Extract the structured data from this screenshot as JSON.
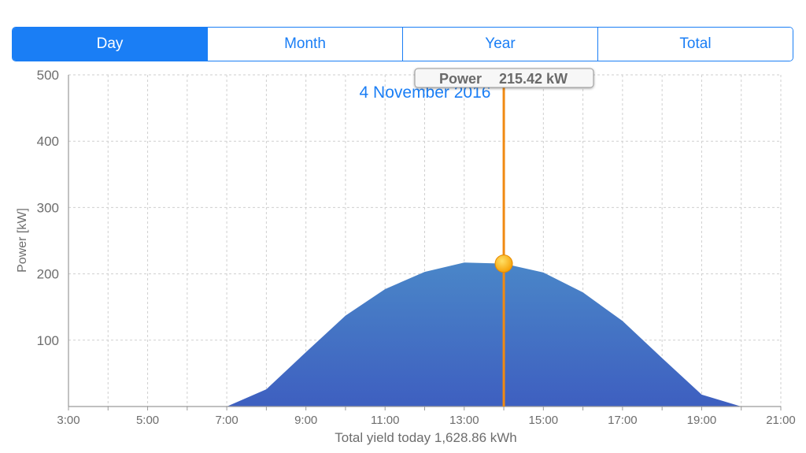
{
  "tabs": [
    {
      "label": "Day",
      "active": true
    },
    {
      "label": "Month",
      "active": false
    },
    {
      "label": "Year",
      "active": false
    },
    {
      "label": "Total",
      "active": false
    }
  ],
  "tooltip": {
    "label": "Power",
    "value": "215.42 kW"
  },
  "date_label": "4 November 2016",
  "colors": {
    "accent": "#1a7ef5",
    "area_top": "#4a86c8",
    "area_bottom": "#3e5fc0",
    "cursor": "#f08a12",
    "marker": "#ffb300"
  },
  "chart_data": {
    "type": "area",
    "title": "",
    "ylabel": "Power [kW]",
    "xlabel": "Total yield today 1,628.86 kWh",
    "ylim": [
      0,
      500
    ],
    "xlim": [
      3,
      21
    ],
    "yticks": [
      100,
      200,
      300,
      400,
      500
    ],
    "xticks": [
      "3:00",
      "5:00",
      "7:00",
      "9:00",
      "11:00",
      "13:00",
      "15:00",
      "17:00",
      "19:00",
      "21:00"
    ],
    "grid": true,
    "series": [
      {
        "x": [
          7,
          8,
          9,
          10,
          11,
          12,
          13,
          14,
          15,
          16,
          17,
          18,
          19,
          20
        ],
        "values": [
          0,
          26,
          82,
          137,
          177,
          203,
          217,
          215.42,
          202,
          172,
          129,
          73,
          18,
          0
        ]
      }
    ],
    "cursor": {
      "x": 14,
      "y": 215.42
    }
  }
}
